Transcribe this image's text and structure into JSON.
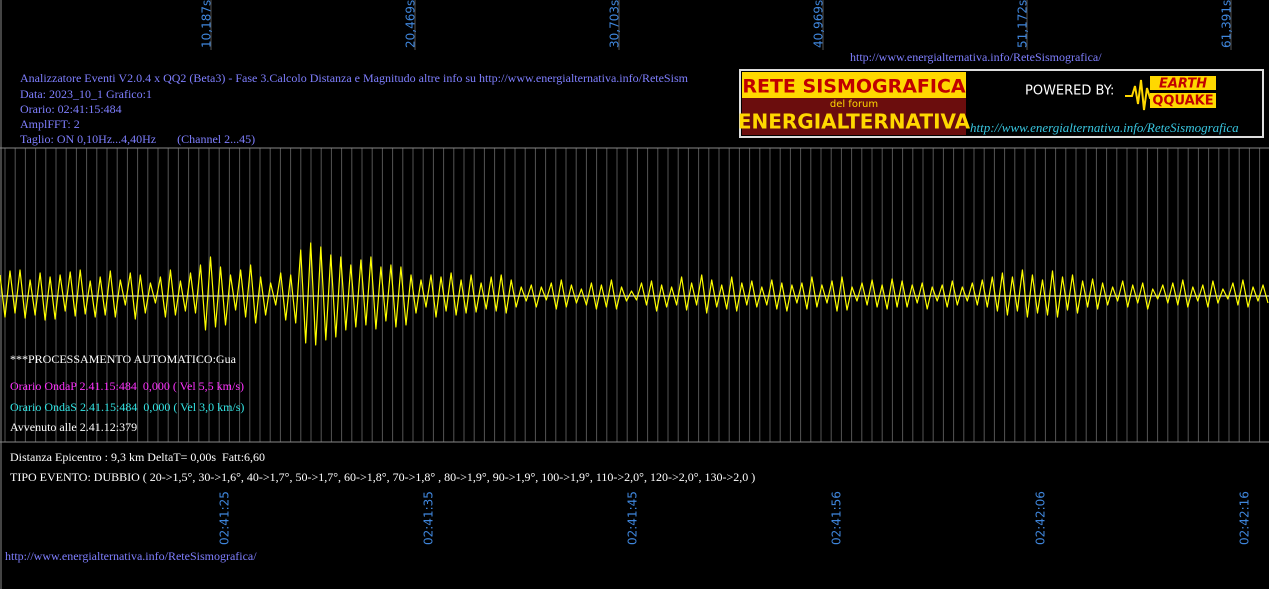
{
  "chart_data": {
    "type": "line",
    "top_time_labels": [
      "10,187s",
      "20,469s",
      "30,703s",
      "40,969s",
      "51,172s",
      "61,391s"
    ],
    "bottom_time_labels": [
      "02:41:25",
      "02:41:35",
      "02:41:45",
      "02:41:56",
      "02:42:06",
      "02:42:16"
    ],
    "header_url": "http://www.energialternativa.info/ReteSismografica/",
    "info_lines": [
      "Analizzatore Eventi V2.0.4 x QQ2 (Beta3) - Fase 3.Calcolo Distanza e Magnitudo altre info su http://www.energialternativa.info/ReteSism",
      "Data: 2023_10_1 Grafico:1",
      "Orario: 02:41:15:484",
      "AmplFFT: 2",
      "Taglio: ON 0,10Hz...4,40Hz       (Channel 2...45)"
    ],
    "logo": {
      "title": "RETE SISMOGRAFICA",
      "subtitle": "del forum",
      "name": "ENERGIALTERNATIVA",
      "powered": "POWERED BY:",
      "brand_top": "EARTH",
      "brand_bottom": "QQUAKE",
      "url": "http://www.energialternativa.info/ReteSismografica"
    },
    "processing": "***PROCESSAMENTO AUTOMATICO:Gua",
    "wave_p": "Orario OndaP 2.41.15:484  0,000 ( Vel 5,5 km/s)",
    "wave_s": "Orario OndaS 2.41.15:484  0,000 ( Vel 3,0 km/s)",
    "occurred": "Avvenuto alle 2.41.12:379",
    "distance": "Distanza Epicentro : 9,3 km DeltaT= 0,00s  Fatt:6,60",
    "event_type": "TIPO EVENTO: DUBBIO ( 20->1,5°, 30->1,6°, 40->1,7°, 50->1,7°, 60->1,8°, 70->1,8° , 80->1,9°, 90->1,9°, 100->1,9°, 110->2,0°, 120->2,0°, 130->2,0 )",
    "footer_url": "http://www.energialternativa.info/ReteSismografica/",
    "color": "#ffff00",
    "ylim": [
      -147,
      147
    ],
    "values": [
      20,
      -22,
      24,
      -18,
      25,
      -23,
      15,
      -20,
      22,
      -25,
      18,
      -24,
      20,
      -16,
      23,
      -21,
      25,
      -19,
      14,
      -22,
      18,
      -20,
      24,
      -22,
      15,
      -10,
      22,
      -24,
      20,
      -18,
      12,
      -8,
      18,
      -22,
      25,
      -20,
      14,
      -16,
      22,
      -18,
      30,
      -35,
      38,
      -32,
      28,
      -30,
      20,
      -15,
      25,
      -22,
      30,
      -28,
      18,
      -20,
      12,
      -10,
      22,
      -25,
      20,
      -28,
      45,
      -48,
      52,
      -50,
      48,
      -45,
      40,
      -42,
      38,
      -35,
      30,
      -32,
      35,
      -30,
      38,
      -34,
      28,
      -26,
      30,
      -32,
      28,
      -30,
      20,
      -18,
      15,
      -12,
      20,
      -22,
      18,
      -16,
      22,
      -20,
      15,
      -18,
      20,
      -17,
      12,
      -14,
      18,
      -16,
      20,
      -18,
      15,
      -12,
      8,
      -6,
      10,
      -12,
      8,
      -5,
      12,
      -14,
      15,
      -12,
      10,
      -8,
      6,
      -10,
      12,
      -14,
      10,
      -12,
      15,
      -14,
      8,
      -6,
      4,
      -5,
      12,
      -10,
      14,
      -16,
      10,
      -12,
      8,
      -10,
      18,
      -15,
      12,
      -10,
      20,
      -18,
      15,
      -12,
      10,
      -14,
      18,
      -16,
      12,
      -10,
      14,
      -12,
      8,
      -10,
      15,
      -14,
      12,
      -16,
      10,
      -8,
      12,
      -14,
      18,
      -12,
      10,
      -8,
      14,
      -16,
      18,
      -15,
      8,
      -6,
      12,
      -10,
      15,
      -12,
      10,
      -14,
      16,
      -12,
      14,
      -12,
      10,
      -8,
      12,
      -14,
      8,
      -6,
      10,
      -12,
      14,
      -10,
      8,
      -6,
      12,
      -10,
      15,
      -12,
      18,
      -16,
      22,
      -20,
      18,
      -16,
      25,
      -22,
      20,
      -18,
      15,
      -20,
      24,
      -22,
      18,
      -15,
      20,
      -18,
      14,
      -12,
      16,
      -14,
      12,
      -10,
      8,
      -6,
      14,
      -12,
      10,
      -8,
      12,
      -14,
      6,
      -4,
      10,
      -8,
      12,
      -10,
      15,
      -12,
      8,
      -6,
      10,
      -12,
      14,
      -8,
      6,
      -4,
      12,
      -10,
      15,
      -12,
      8,
      -6,
      10,
      -8
    ]
  }
}
